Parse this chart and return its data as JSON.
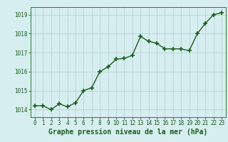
{
  "x": [
    0,
    1,
    2,
    3,
    4,
    5,
    6,
    7,
    8,
    9,
    10,
    11,
    12,
    13,
    14,
    15,
    16,
    17,
    18,
    19,
    20,
    21,
    22,
    23
  ],
  "y": [
    1014.2,
    1014.2,
    1014.0,
    1014.3,
    1014.15,
    1014.35,
    1015.0,
    1015.15,
    1016.0,
    1016.25,
    1016.65,
    1016.7,
    1016.85,
    1017.85,
    1017.6,
    1017.5,
    1017.2,
    1017.2,
    1017.2,
    1017.1,
    1018.0,
    1018.55,
    1019.0,
    1019.1
  ],
  "line_color": "#1a5c1a",
  "marker": "+",
  "marker_size": 4,
  "line_width": 1.0,
  "bg_color": "#d6eef0",
  "grid_color": "#b0cccc",
  "xlabel": "Graphe pression niveau de la mer (hPa)",
  "xlabel_fontsize": 7,
  "xlabel_color": "#1a5c1a",
  "yticks": [
    1014,
    1015,
    1016,
    1017,
    1018,
    1019
  ],
  "xticks": [
    0,
    1,
    2,
    3,
    4,
    5,
    6,
    7,
    8,
    9,
    10,
    11,
    12,
    13,
    14,
    15,
    16,
    17,
    18,
    19,
    20,
    21,
    22,
    23
  ],
  "ylim": [
    1013.6,
    1019.4
  ],
  "xlim": [
    -0.5,
    23.5
  ],
  "tick_fontsize": 5.5,
  "tick_color": "#1a5c1a",
  "spine_color": "#2d7a2d"
}
